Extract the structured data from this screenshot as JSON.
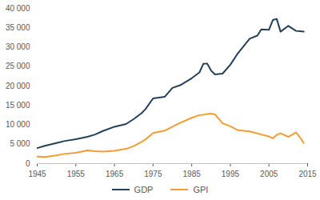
{
  "chart_data": {
    "type": "line",
    "x": [
      1945,
      1947,
      1950,
      1952,
      1955,
      1958,
      1960,
      1962,
      1965,
      1968,
      1970,
      1972,
      1973,
      1975,
      1978,
      1980,
      1982,
      1985,
      1987,
      1988,
      1989,
      1990,
      1991,
      1993,
      1995,
      1997,
      2000,
      2002,
      2003,
      2005,
      2006,
      2007,
      2008,
      2010,
      2012,
      2013,
      2014
    ],
    "series": [
      {
        "name": "GDP",
        "color": "#243f5a",
        "line_style": "solid",
        "values": [
          4000,
          4600,
          5300,
          5800,
          6300,
          6900,
          7500,
          8400,
          9500,
          10200,
          11500,
          13000,
          14000,
          16800,
          17200,
          19500,
          20200,
          22000,
          23500,
          25700,
          25800,
          24000,
          23000,
          23200,
          25500,
          28500,
          32200,
          33000,
          34600,
          34500,
          37000,
          37300,
          34000,
          35500,
          34200,
          34100,
          34000
        ]
      },
      {
        "name": "GPI",
        "color": "#f39c34",
        "line_style": "solid",
        "values": [
          1800,
          1700,
          2100,
          2500,
          2800,
          3400,
          3200,
          3100,
          3300,
          3800,
          4500,
          5600,
          6200,
          7900,
          8500,
          9500,
          10500,
          11800,
          12500,
          12600,
          12800,
          12900,
          12700,
          10400,
          9600,
          8600,
          8300,
          7800,
          7500,
          7000,
          6500,
          7400,
          7800,
          6900,
          8000,
          6800,
          5300
        ]
      }
    ],
    "xlim": [
      1945,
      2015
    ],
    "xticks": [
      1945,
      1955,
      1965,
      1975,
      1985,
      1995,
      2005,
      2015
    ],
    "ylim": [
      0,
      40000
    ],
    "yticks": [
      0,
      {
        "value": 5000,
        "label": "5 000"
      },
      {
        "value": 10000,
        "label": "10 000"
      },
      {
        "value": 15000,
        "label": "15 000"
      },
      {
        "value": 20000,
        "label": "20 000"
      },
      {
        "value": 25000,
        "label": "25 000"
      },
      {
        "value": 30000,
        "label": "30 000"
      },
      {
        "value": 35000,
        "label": "35 000"
      },
      {
        "value": 40000,
        "label": "40 000"
      }
    ],
    "grid": false,
    "legend": "bottom"
  }
}
